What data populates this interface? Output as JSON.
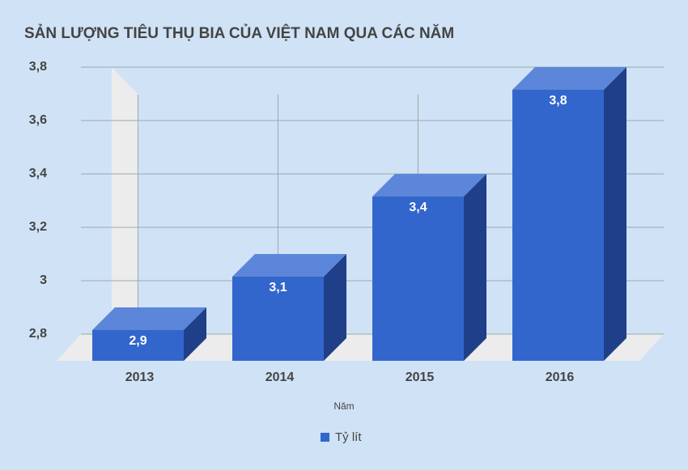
{
  "chart_data": {
    "type": "bar3d",
    "title": "SẢN LƯỢNG TIÊU THỤ BIA CỦA VIỆT NAM QUA CÁC NĂM",
    "x_label": "Năm",
    "categories": [
      "2013",
      "2014",
      "2015",
      "2016"
    ],
    "series": [
      {
        "name": "Tỷ lít",
        "color": "#3366cc",
        "values": [
          2.9,
          3.1,
          3.4,
          3.8
        ],
        "value_labels": [
          "2,9",
          "3,1",
          "3,4",
          "3,8"
        ]
      }
    ],
    "ylim": [
      2.8,
      3.8
    ],
    "yticks": [
      {
        "value": 2.8,
        "label": "2,8"
      },
      3,
      {
        "value": 3.2,
        "label": "3,2"
      },
      {
        "value": 3.4,
        "label": "3,4"
      },
      {
        "value": 3.6,
        "label": "3,6"
      },
      {
        "value": 3.8,
        "label": "3,8"
      }
    ],
    "grid": true
  }
}
